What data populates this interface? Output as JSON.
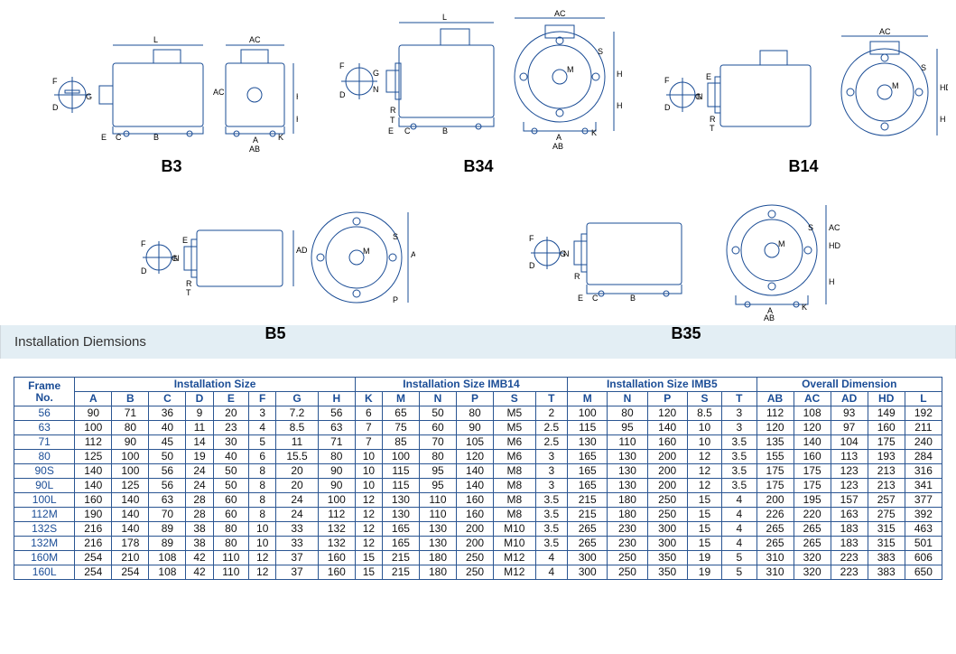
{
  "diagrams": {
    "labels": [
      "B3",
      "B34",
      "B14",
      "B5",
      "B35"
    ],
    "stroke": "#1a4c95",
    "stroke_width": 1,
    "dim_letters": [
      "L",
      "AC",
      "HD",
      "H",
      "A",
      "AB",
      "K",
      "E",
      "C",
      "B",
      "F",
      "D",
      "G",
      "M",
      "N",
      "P",
      "S",
      "T",
      "R",
      "AD"
    ]
  },
  "section_title": "Installation Diemsions",
  "table": {
    "border_color": "#2a5592",
    "header_text_color": "#1b4d96",
    "group_headers": [
      "Frame No.",
      "Installation Size",
      "Installation Size IMB14",
      "Installation Size IMB5",
      "Overall Dimension"
    ],
    "group_spans": [
      1,
      8,
      6,
      5,
      5
    ],
    "columns": [
      "A",
      "B",
      "C",
      "D",
      "E",
      "F",
      "G",
      "H",
      "K",
      "M",
      "N",
      "P",
      "S",
      "T",
      "M",
      "N",
      "P",
      "S",
      "T",
      "AB",
      "AC",
      "AD",
      "HD",
      "L"
    ],
    "frame_labels": [
      "56",
      "63",
      "71",
      "80",
      "90S",
      "90L",
      "100L",
      "112M",
      "132S",
      "132M",
      "160M",
      "160L"
    ],
    "rows": [
      [
        90,
        71,
        36,
        9,
        20,
        3,
        "7.2",
        56,
        6,
        65,
        50,
        80,
        "M5",
        2,
        100,
        80,
        120,
        "8.5",
        3,
        112,
        108,
        93,
        149,
        192
      ],
      [
        100,
        80,
        40,
        11,
        23,
        4,
        "8.5",
        63,
        7,
        75,
        60,
        90,
        "M5",
        "2.5",
        115,
        95,
        140,
        10,
        3,
        120,
        120,
        97,
        160,
        211
      ],
      [
        112,
        90,
        45,
        14,
        30,
        5,
        11,
        71,
        7,
        85,
        70,
        105,
        "M6",
        "2.5",
        130,
        110,
        160,
        10,
        "3.5",
        135,
        140,
        104,
        175,
        240
      ],
      [
        125,
        100,
        50,
        19,
        40,
        6,
        "15.5",
        80,
        10,
        100,
        80,
        120,
        "M6",
        3,
        165,
        130,
        200,
        12,
        "3.5",
        155,
        160,
        113,
        193,
        284
      ],
      [
        140,
        100,
        56,
        24,
        50,
        8,
        20,
        90,
        10,
        115,
        95,
        140,
        "M8",
        3,
        165,
        130,
        200,
        12,
        "3.5",
        175,
        175,
        123,
        213,
        316
      ],
      [
        140,
        125,
        56,
        24,
        50,
        8,
        20,
        90,
        10,
        115,
        95,
        140,
        "M8",
        3,
        165,
        130,
        200,
        12,
        "3.5",
        175,
        175,
        123,
        213,
        341
      ],
      [
        160,
        140,
        63,
        28,
        60,
        8,
        24,
        100,
        12,
        130,
        110,
        160,
        "M8",
        "3.5",
        215,
        180,
        250,
        15,
        4,
        200,
        195,
        157,
        257,
        377
      ],
      [
        190,
        140,
        70,
        28,
        60,
        8,
        24,
        112,
        12,
        130,
        110,
        160,
        "M8",
        "3.5",
        215,
        180,
        250,
        15,
        4,
        226,
        220,
        163,
        275,
        392
      ],
      [
        216,
        140,
        89,
        38,
        80,
        10,
        33,
        132,
        12,
        165,
        130,
        200,
        "M10",
        "3.5",
        265,
        230,
        300,
        15,
        4,
        265,
        265,
        183,
        315,
        463
      ],
      [
        216,
        178,
        89,
        38,
        80,
        10,
        33,
        132,
        12,
        165,
        130,
        200,
        "M10",
        "3.5",
        265,
        230,
        300,
        15,
        4,
        265,
        265,
        183,
        315,
        501
      ],
      [
        254,
        210,
        108,
        42,
        110,
        12,
        37,
        160,
        15,
        215,
        180,
        250,
        "M12",
        4,
        300,
        250,
        350,
        19,
        5,
        310,
        320,
        223,
        383,
        606
      ],
      [
        254,
        254,
        108,
        42,
        110,
        12,
        37,
        160,
        15,
        215,
        180,
        250,
        "M12",
        4,
        300,
        250,
        350,
        19,
        5,
        310,
        320,
        223,
        383,
        650
      ]
    ]
  }
}
